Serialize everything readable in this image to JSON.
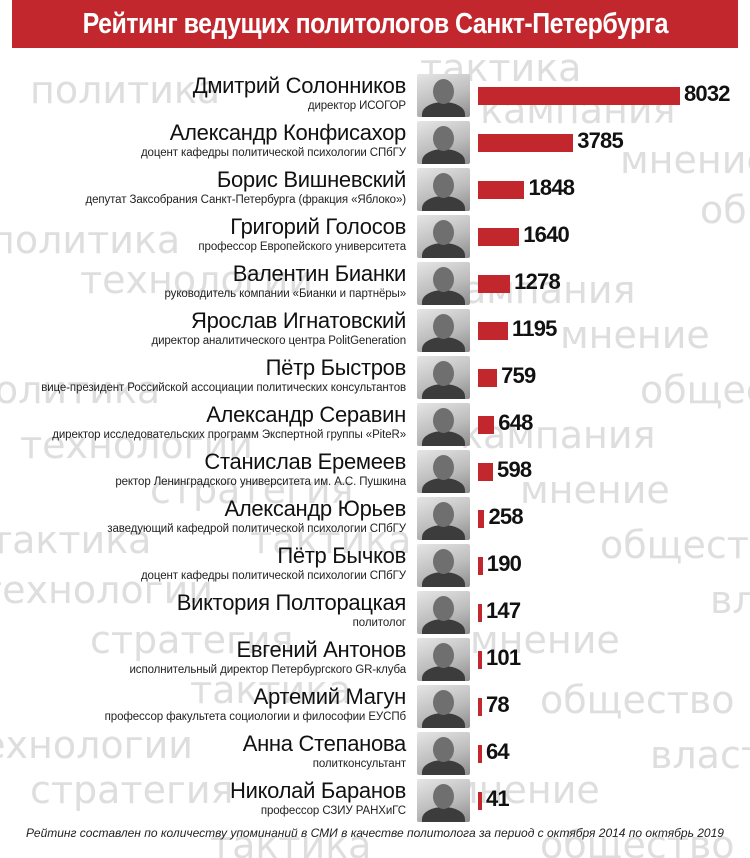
{
  "title": "Рейтинг ведущих политологов Санкт-Петербурга",
  "footnote": "Рейтинг составлен по количеству упоминаний в СМИ в качестве политолога за период с октября 2014 по октябрь 2019",
  "watermark_words": [
    "политика",
    "тактика",
    "кампания",
    "мнение",
    "общество",
    "технологии",
    "стратегия",
    "власть"
  ],
  "colors": {
    "accent": "#c1272d",
    "watermark": "#dedede"
  },
  "chart_data": {
    "type": "bar",
    "orientation": "horizontal",
    "title": "Рейтинг ведущих политологов Санкт-Петербурга",
    "categories": [
      "Дмитрий Солонников",
      "Александр Конфисахор",
      "Борис Вишневский",
      "Григорий Голосов",
      "Валентин Бианки",
      "Ярослав Игнатовский",
      "Пётр Быстров",
      "Александр Серавин",
      "Станислав Еремеев",
      "Александр Юрьев",
      "Пётр Бычков",
      "Виктория Полторацкая",
      "Евгений Антонов",
      "Артемий Магун",
      "Анна Степанова",
      "Николай Баранов"
    ],
    "values": [
      8032,
      3785,
      1848,
      1640,
      1278,
      1195,
      759,
      648,
      598,
      258,
      190,
      147,
      101,
      78,
      64,
      41
    ],
    "descriptions": [
      "директор ИСОГОР",
      "доцент кафедры политической психологии СПбГУ",
      "депутат Заксобрания Санкт-Петербурга (фракция «Яблоко»)",
      "профессор Европейского университета",
      "руководитель компании «Бианки и партнёры»",
      "директор аналитического центра PolitGeneration",
      "вице-президент Российской ассоциации политических консультантов",
      "директор исследовательских программ Экспертной группы «PiteR»",
      "ректор Ленинградского университета им. А.С. Пушкина",
      "заведующий кафедрой политической психологии СПбГУ",
      "доцент кафедры политической психологии СПбГУ",
      "политолог",
      "исполнительный директор Петербургского GR-клуба",
      "профессор факультета социологии и философии ЕУСПб",
      "политконсультант",
      "профессор СЗИУ РАНХиГС"
    ],
    "xlim": [
      0,
      8032
    ],
    "grid": false,
    "legend": "none"
  }
}
